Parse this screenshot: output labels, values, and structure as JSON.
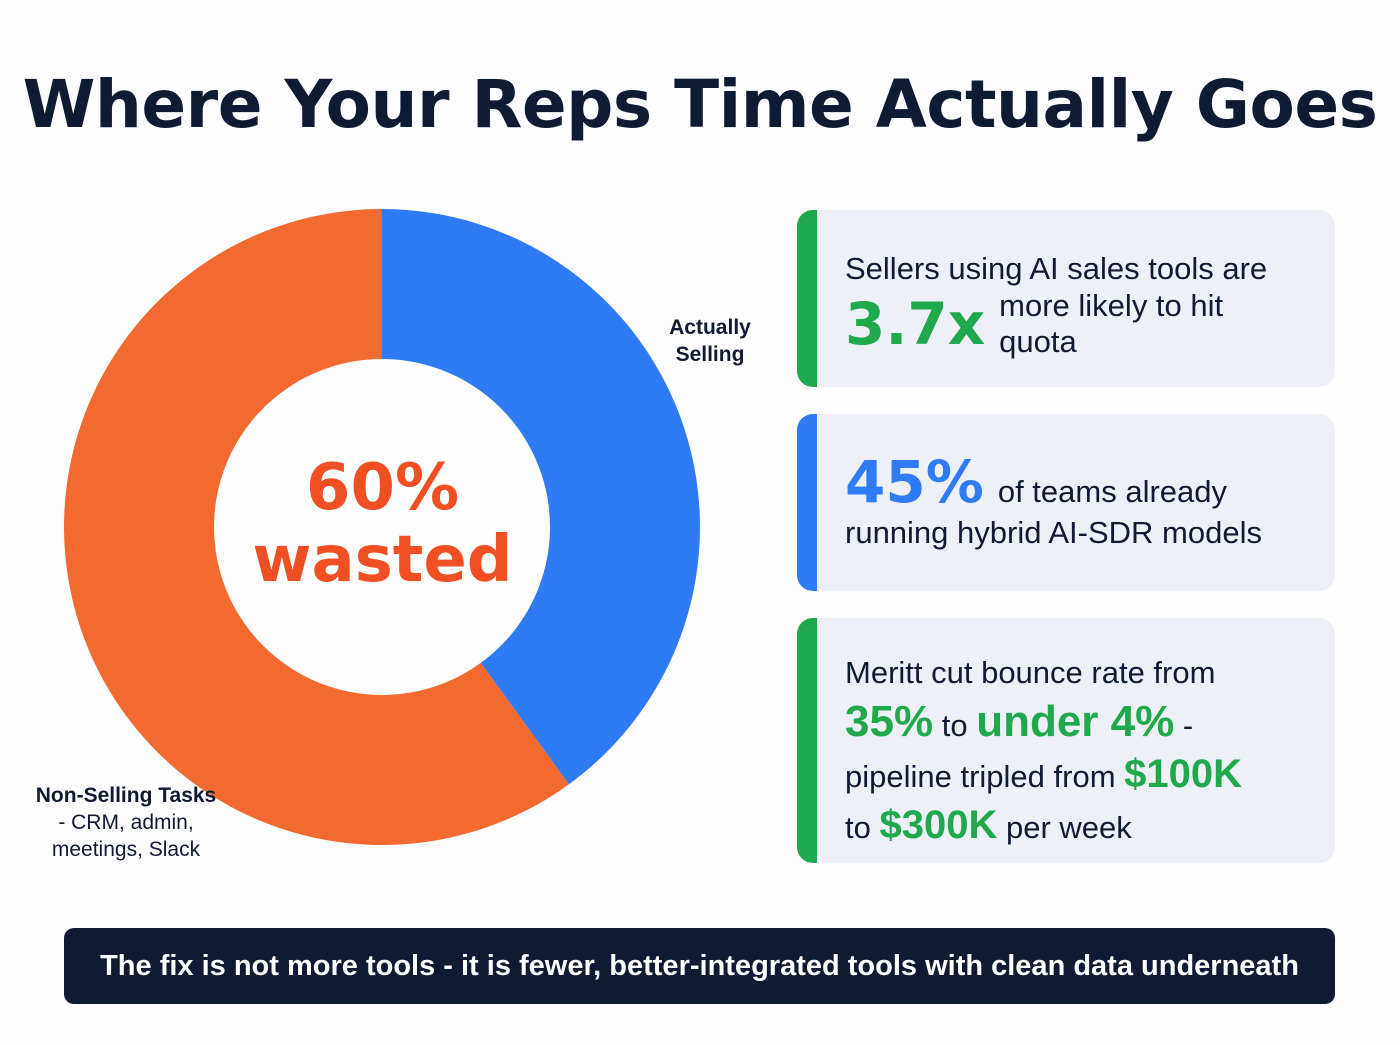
{
  "title": "Where Your Reps Time Actually Goes",
  "chart_data": {
    "type": "pie",
    "variant": "donut",
    "title": "Where Your Reps Time Actually Goes",
    "slices": [
      {
        "label": "Actually Selling",
        "value": 40,
        "color": "#2f7bf6"
      },
      {
        "label": "Non-Selling Tasks - CRM, admin, meetings, Slack",
        "value": 60,
        "color": "#f26a30"
      }
    ],
    "center_label": [
      "60%",
      "wasted"
    ]
  },
  "labels": {
    "selling": [
      "Actually",
      "Selling"
    ],
    "non_selling_title": "Non-Selling Tasks",
    "non_selling_detail": [
      "- CRM, admin,",
      "meetings, Slack"
    ]
  },
  "cards": {
    "c1": {
      "line1": "Sellers using AI sales tools are",
      "stat": "3.7x",
      "rest1": "more likely to hit",
      "rest2": "quota",
      "accent": "#1fa84c"
    },
    "c2": {
      "stat": "45%",
      "rest1": "of teams already",
      "line2": "running hybrid AI-SDR models",
      "accent": "#2f7bf6"
    },
    "c3": {
      "line1": "Meritt cut bounce rate from",
      "from": "35%",
      "to_word": "to",
      "to": "under 4%",
      "dash": "-",
      "line3": "pipeline tripled from",
      "v1": "$100K",
      "to2": "to",
      "v2": "$300K",
      "per": "per week",
      "accent": "#1fa84c"
    }
  },
  "banner": "The fix is not more tools - it is fewer, better-integrated tools with clean data underneath"
}
